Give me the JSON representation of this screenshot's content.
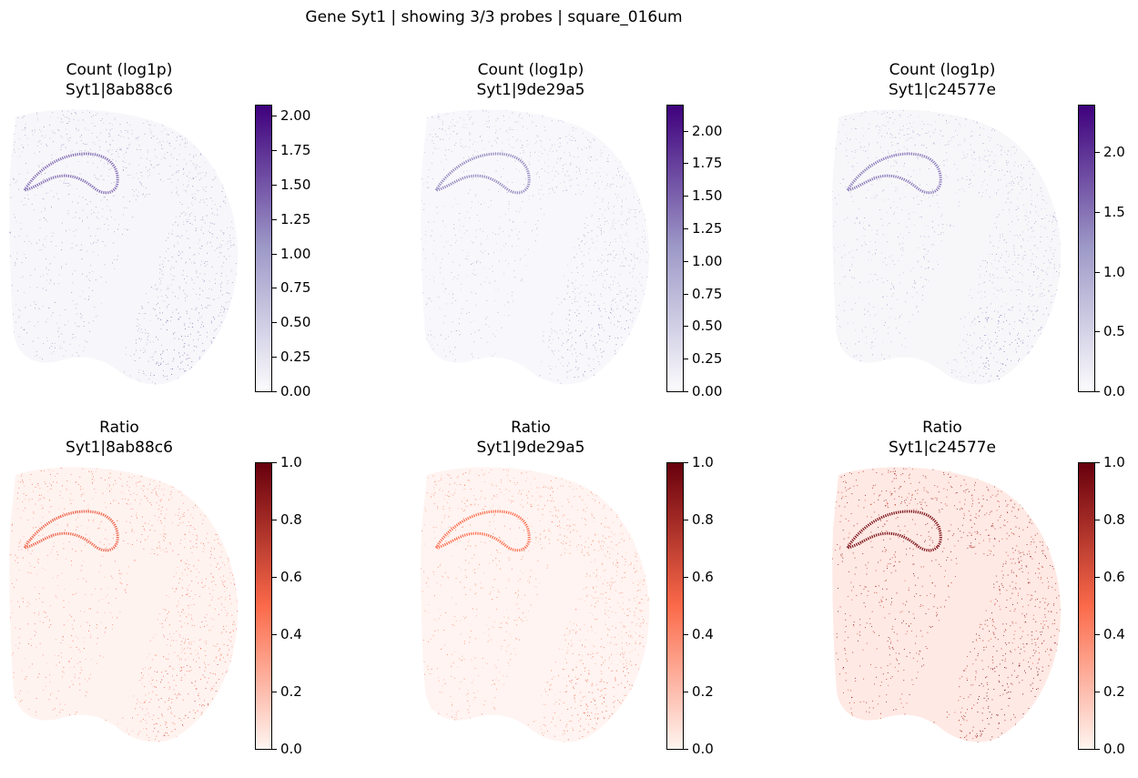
{
  "figure": {
    "suptitle": "Gene Syt1 | showing 3/3 probes | square_016um"
  },
  "colors": {
    "purples_low": "#fcfbfd",
    "purples_mid": "#9e9ac8",
    "purples_high": "#3f007d",
    "reds_low": "#fff5f0",
    "reds_mid": "#fb6a4a",
    "reds_high": "#67000d"
  },
  "chart_data": [
    {
      "type": "scatter",
      "title": "Count (log1p)\nSyt1|8ab88c6",
      "title_line1": "Count (log1p)",
      "title_line2": "Syt1|8ab88c6",
      "colormap": "Purples",
      "colorbar_range": [
        0,
        2.08
      ],
      "colorbar_ticks": [
        "0.00",
        "0.25",
        "0.50",
        "0.75",
        "1.00",
        "1.25",
        "1.50",
        "1.75",
        "2.00"
      ],
      "colorbar_tick_values": [
        0,
        0.25,
        0.5,
        0.75,
        1.0,
        1.25,
        1.5,
        1.75,
        2.0
      ],
      "typical_value": 0.95,
      "axes": "off"
    },
    {
      "type": "scatter",
      "title": "Count (log1p)\nSyt1|9de29a5",
      "title_line1": "Count (log1p)",
      "title_line2": "Syt1|9de29a5",
      "colormap": "Purples",
      "colorbar_range": [
        0,
        2.2
      ],
      "colorbar_ticks": [
        "0.00",
        "0.25",
        "0.50",
        "0.75",
        "1.00",
        "1.25",
        "1.50",
        "1.75",
        "2.00"
      ],
      "colorbar_tick_values": [
        0,
        0.25,
        0.5,
        0.75,
        1.0,
        1.25,
        1.5,
        1.75,
        2.0
      ],
      "typical_value": 0.8,
      "axes": "off"
    },
    {
      "type": "scatter",
      "title": "Count (log1p)\nSyt1|c24577e",
      "title_line1": "Count (log1p)",
      "title_line2": "Syt1|c24577e",
      "colormap": "Purples",
      "colorbar_range": [
        0,
        2.4
      ],
      "colorbar_ticks": [
        "0.0",
        "0.5",
        "1.0",
        "1.5",
        "2.0"
      ],
      "colorbar_tick_values": [
        0,
        0.5,
        1.0,
        1.5,
        2.0
      ],
      "typical_value": 1.0,
      "axes": "off"
    },
    {
      "type": "scatter",
      "title": "Ratio\nSyt1|8ab88c6",
      "title_line1": "Ratio",
      "title_line2": "Syt1|8ab88c6",
      "colormap": "Reds",
      "colorbar_range": [
        0,
        1.0
      ],
      "colorbar_ticks": [
        "0.0",
        "0.2",
        "0.4",
        "0.6",
        "0.8",
        "1.0"
      ],
      "colorbar_tick_values": [
        0,
        0.2,
        0.4,
        0.6,
        0.8,
        1.0
      ],
      "typical_value": 0.35,
      "axes": "off"
    },
    {
      "type": "scatter",
      "title": "Ratio\nSyt1|9de29a5",
      "title_line1": "Ratio",
      "title_line2": "Syt1|9de29a5",
      "colormap": "Reds",
      "colorbar_range": [
        0,
        1.0
      ],
      "colorbar_ticks": [
        "0.0",
        "0.2",
        "0.4",
        "0.6",
        "0.8",
        "1.0"
      ],
      "colorbar_tick_values": [
        0,
        0.2,
        0.4,
        0.6,
        0.8,
        1.0
      ],
      "typical_value": 0.3,
      "axes": "off"
    },
    {
      "type": "scatter",
      "title": "Ratio\nSyt1|c24577e",
      "title_line1": "Ratio",
      "title_line2": "Syt1|c24577e",
      "colormap": "Reds",
      "colorbar_range": [
        0,
        1.0
      ],
      "colorbar_ticks": [
        "0.0",
        "0.2",
        "0.4",
        "0.6",
        "0.8",
        "1.0"
      ],
      "colorbar_tick_values": [
        0,
        0.2,
        0.4,
        0.6,
        0.8,
        1.0
      ],
      "typical_value": 0.75,
      "axes": "off"
    }
  ]
}
